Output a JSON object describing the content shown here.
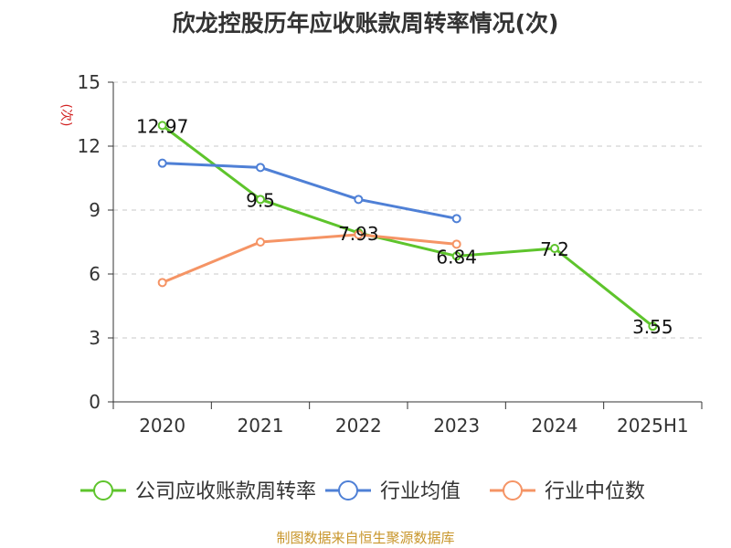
{
  "chart_data": {
    "type": "line",
    "title": "欣龙控股历年应收账款周转率情况(次)",
    "ylabel": "(次)",
    "xlabel": "",
    "categories": [
      "2020",
      "2021",
      "2022",
      "2023",
      "2024",
      "2025H1"
    ],
    "ylim": [
      0,
      15
    ],
    "yticks": [
      0,
      3,
      6,
      9,
      12,
      15
    ],
    "grid": true,
    "legend_position": "bottom",
    "series": [
      {
        "name": "公司应收账款周转率",
        "color": "#5ec42c",
        "values": [
          12.97,
          9.5,
          7.93,
          6.84,
          7.2,
          3.55
        ],
        "labels": [
          "12.97",
          "9.5",
          "7.93",
          "6.84",
          "7.2",
          "3.55"
        ]
      },
      {
        "name": "行业均值",
        "color": "#4f80d6",
        "values": [
          11.2,
          11.0,
          9.5,
          8.6,
          null,
          null
        ]
      },
      {
        "name": "行业中位数",
        "color": "#f59465",
        "values": [
          5.6,
          7.5,
          7.85,
          7.4,
          null,
          null
        ]
      }
    ]
  },
  "source": "制图数据来自恒生聚源数据库"
}
